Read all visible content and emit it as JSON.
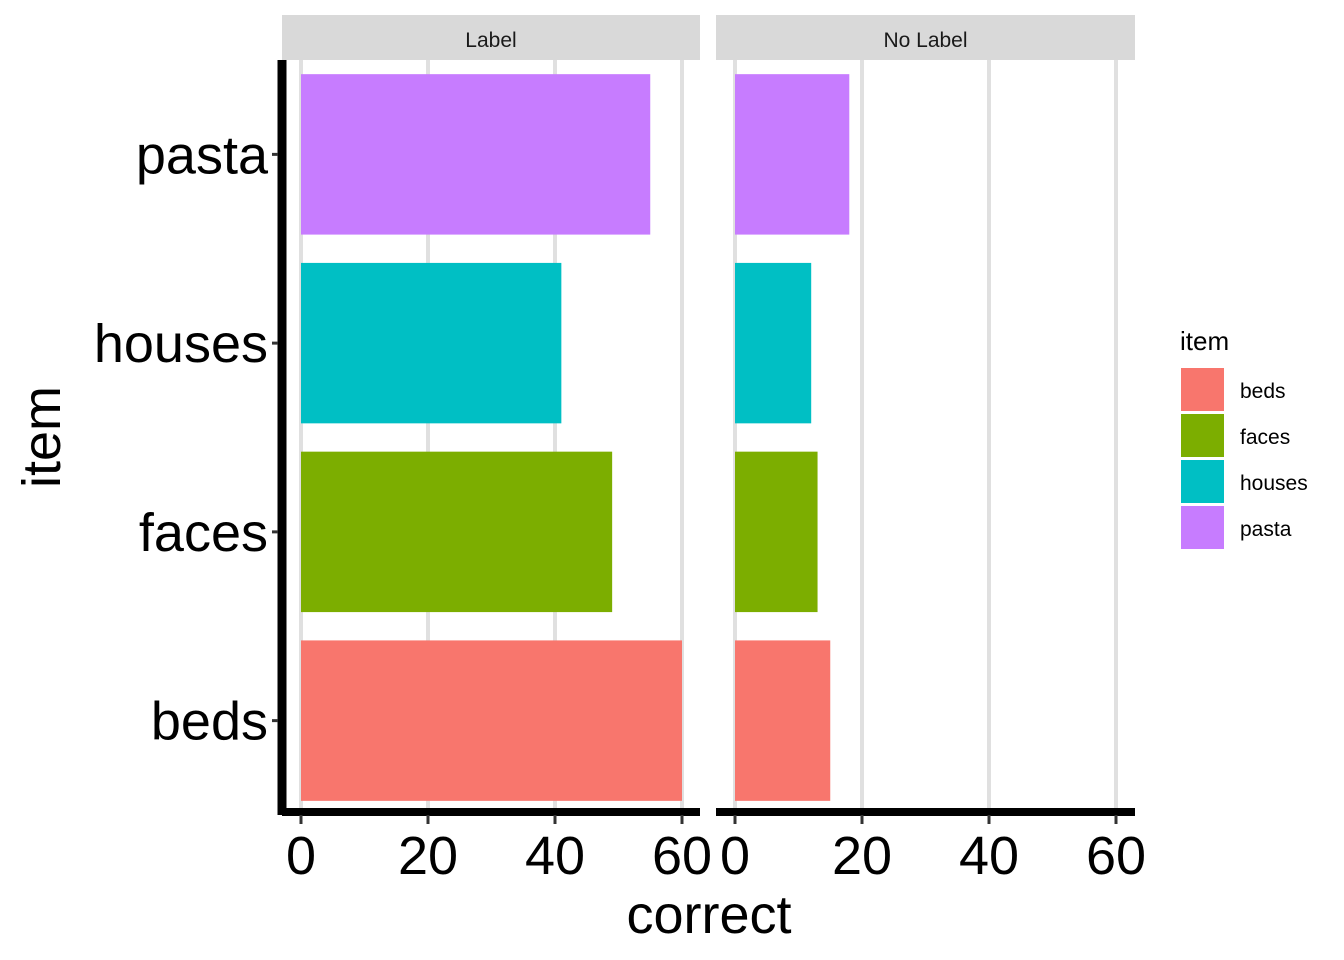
{
  "chart_data": {
    "type": "bar",
    "orientation": "horizontal",
    "facets": [
      "Label",
      "No Label"
    ],
    "categories": [
      "beds",
      "faces",
      "houses",
      "pasta"
    ],
    "series": [
      {
        "facet": "Label",
        "values": [
          60,
          49,
          41,
          55
        ]
      },
      {
        "facet": "No Label",
        "values": [
          15,
          13,
          12,
          18
        ]
      }
    ],
    "xlabel": "correct",
    "ylabel": "item",
    "xlim": [
      0,
      63
    ],
    "xticks": [
      "0",
      "20",
      "40",
      "60"
    ],
    "grid": "vertical major",
    "legend": {
      "title": "item",
      "position": "right",
      "entries": [
        "beds",
        "faces",
        "houses",
        "pasta"
      ]
    },
    "colors": {
      "beds": "#F8766D",
      "faces": "#7CAE00",
      "houses": "#00BFC4",
      "pasta": "#C77CFF",
      "grid": "#E0E0E0",
      "strip": "#D9D9D9",
      "axis": "#000000"
    }
  }
}
